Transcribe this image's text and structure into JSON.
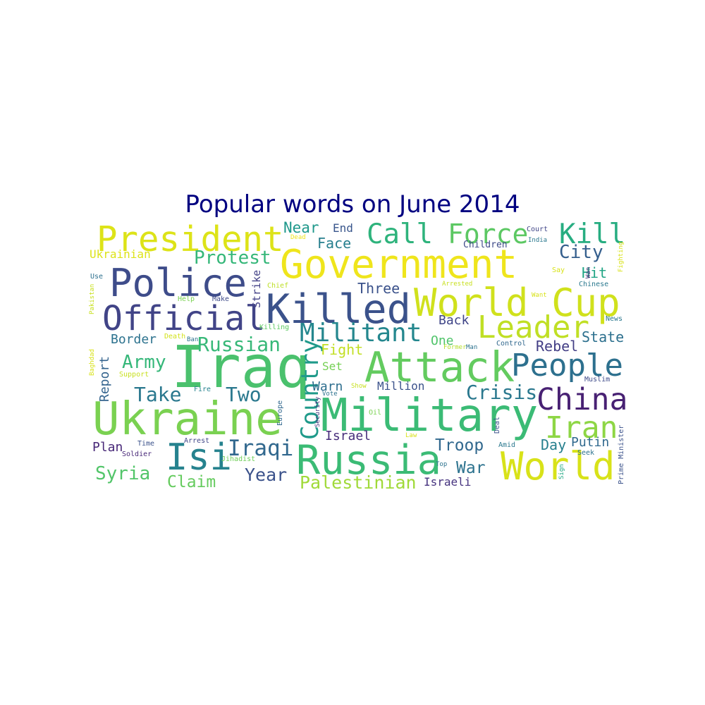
{
  "title": "Popular words on June 2014",
  "title_color": "#000080",
  "chart_data": {
    "type": "wordcloud",
    "title": "Popular words on June 2014",
    "words": [
      {
        "text": "Iraq",
        "size": 1.0,
        "color": "#4ac16d",
        "vertical": false
      },
      {
        "text": "Military",
        "size": 0.78,
        "color": "#3bbb75",
        "vertical": false
      },
      {
        "text": "Government",
        "size": 0.68,
        "color": "#efe51c",
        "vertical": false
      },
      {
        "text": "Ukraine",
        "size": 0.78,
        "color": "#7ad151",
        "vertical": false
      },
      {
        "text": "Attack",
        "size": 0.72,
        "color": "#63cb5f",
        "vertical": false
      },
      {
        "text": "Russia",
        "size": 0.7,
        "color": "#3bbb75",
        "vertical": false
      },
      {
        "text": "World",
        "size": 0.66,
        "color": "#d8e219",
        "vertical": false
      },
      {
        "text": "World Cup",
        "size": 0.66,
        "color": "#d0e11c",
        "vertical": false
      },
      {
        "text": "Killed",
        "size": 0.7,
        "color": "#3b528b",
        "vertical": false
      },
      {
        "text": "Police",
        "size": 0.66,
        "color": "#3e4c8a",
        "vertical": false
      },
      {
        "text": "President",
        "size": 0.6,
        "color": "#dde318",
        "vertical": false
      },
      {
        "text": "Isi",
        "size": 0.64,
        "color": "#26828e",
        "vertical": false
      },
      {
        "text": "Official",
        "size": 0.58,
        "color": "#414487",
        "vertical": false
      },
      {
        "text": "Leader",
        "size": 0.54,
        "color": "#c0df25",
        "vertical": false
      },
      {
        "text": "People",
        "size": 0.54,
        "color": "#2d708e",
        "vertical": false
      },
      {
        "text": "China",
        "size": 0.52,
        "color": "#482173",
        "vertical": false
      },
      {
        "text": "Iran",
        "size": 0.52,
        "color": "#8ed645",
        "vertical": false
      },
      {
        "text": "Call",
        "size": 0.48,
        "color": "#2eb37c",
        "vertical": false
      },
      {
        "text": "Force",
        "size": 0.46,
        "color": "#5cc863",
        "vertical": false
      },
      {
        "text": "Kill",
        "size": 0.48,
        "color": "#27ad81",
        "vertical": false
      },
      {
        "text": "Militant",
        "size": 0.44,
        "color": "#24878e",
        "vertical": false
      },
      {
        "text": "Country",
        "size": 0.42,
        "color": "#1f9a8a",
        "vertical": true
      },
      {
        "text": "Iraqi",
        "size": 0.38,
        "color": "#31688e",
        "vertical": false
      },
      {
        "text": "Russian",
        "size": 0.34,
        "color": "#37b878",
        "vertical": false
      },
      {
        "text": "Protest",
        "size": 0.32,
        "color": "#35b779",
        "vertical": false
      },
      {
        "text": "Take",
        "size": 0.34,
        "color": "#2a788e",
        "vertical": false
      },
      {
        "text": "Two",
        "size": 0.34,
        "color": "#2a788e",
        "vertical": false
      },
      {
        "text": "Crisis",
        "size": 0.34,
        "color": "#2a788e",
        "vertical": false
      },
      {
        "text": "City",
        "size": 0.32,
        "color": "#355f8d",
        "vertical": false
      },
      {
        "text": "Army",
        "size": 0.32,
        "color": "#35b779",
        "vertical": false
      },
      {
        "text": "Syria",
        "size": 0.32,
        "color": "#52c569",
        "vertical": false
      },
      {
        "text": "Claim",
        "size": 0.28,
        "color": "#65cb5e",
        "vertical": false
      },
      {
        "text": "Year",
        "size": 0.3,
        "color": "#3b528b",
        "vertical": false
      },
      {
        "text": "Palestinian",
        "size": 0.3,
        "color": "#a0da39",
        "vertical": false
      },
      {
        "text": "Troop",
        "size": 0.28,
        "color": "#31688e",
        "vertical": false
      },
      {
        "text": "War",
        "size": 0.28,
        "color": "#2c728e",
        "vertical": false
      },
      {
        "text": "Day",
        "size": 0.24,
        "color": "#27808e",
        "vertical": false
      },
      {
        "text": "Putin",
        "size": 0.22,
        "color": "#30698e",
        "vertical": false
      },
      {
        "text": "Near",
        "size": 0.26,
        "color": "#1f988b",
        "vertical": false
      },
      {
        "text": "Face",
        "size": 0.24,
        "color": "#277f8e",
        "vertical": false
      },
      {
        "text": "End",
        "size": 0.2,
        "color": "#39568c",
        "vertical": false
      },
      {
        "text": "Three",
        "size": 0.24,
        "color": "#3b528b",
        "vertical": false
      },
      {
        "text": "Back",
        "size": 0.22,
        "color": "#404688",
        "vertical": false
      },
      {
        "text": "State",
        "size": 0.24,
        "color": "#2d708e",
        "vertical": false
      },
      {
        "text": "Rebel",
        "size": 0.24,
        "color": "#433e85",
        "vertical": false
      },
      {
        "text": "Hit",
        "size": 0.24,
        "color": "#21a585",
        "vertical": false
      },
      {
        "text": "Border",
        "size": 0.22,
        "color": "#2c728e",
        "vertical": false
      },
      {
        "text": "Report",
        "size": 0.22,
        "color": "#33638d",
        "vertical": true
      },
      {
        "text": "Fight",
        "size": 0.24,
        "color": "#c2df23",
        "vertical": false
      },
      {
        "text": "One",
        "size": 0.22,
        "color": "#50c46a",
        "vertical": false
      },
      {
        "text": "Set",
        "size": 0.2,
        "color": "#75d054",
        "vertical": false
      },
      {
        "text": "Warn",
        "size": 0.22,
        "color": "#2e6e8e",
        "vertical": false
      },
      {
        "text": "Million",
        "size": 0.2,
        "color": "#3b528b",
        "vertical": false
      },
      {
        "text": "Israel",
        "size": 0.22,
        "color": "#472d7b",
        "vertical": false
      },
      {
        "text": "Israeli",
        "size": 0.2,
        "color": "#46337f",
        "vertical": false
      },
      {
        "text": "Plan",
        "size": 0.22,
        "color": "#482878",
        "vertical": false
      },
      {
        "text": "Ukrainian",
        "size": 0.2,
        "color": "#dde318",
        "vertical": false
      },
      {
        "text": "Strike",
        "size": 0.18,
        "color": "#424086",
        "vertical": true
      },
      {
        "text": "Children",
        "size": 0.16,
        "color": "#3e4a89",
        "vertical": false
      },
      {
        "text": "Court",
        "size": 0.12,
        "color": "#404688",
        "vertical": false
      },
      {
        "text": "India",
        "size": 0.1,
        "color": "#2a788e",
        "vertical": false
      },
      {
        "text": "Dead",
        "size": 0.1,
        "color": "#f1e51d",
        "vertical": false
      },
      {
        "text": "Use",
        "size": 0.12,
        "color": "#2d708e",
        "vertical": false
      },
      {
        "text": "Chief",
        "size": 0.12,
        "color": "#bddf26",
        "vertical": false
      },
      {
        "text": "Help",
        "size": 0.12,
        "color": "#7ad151",
        "vertical": false
      },
      {
        "text": "Make",
        "size": 0.12,
        "color": "#3e4a89",
        "vertical": false
      },
      {
        "text": "Killing",
        "size": 0.12,
        "color": "#5ec962",
        "vertical": false
      },
      {
        "text": "Ban",
        "size": 0.1,
        "color": "#2c728e",
        "vertical": false
      },
      {
        "text": "Death",
        "size": 0.12,
        "color": "#d2e21b",
        "vertical": false
      },
      {
        "text": "Support",
        "size": 0.12,
        "color": "#c8e020",
        "vertical": false
      },
      {
        "text": "Fire",
        "size": 0.12,
        "color": "#26828e",
        "vertical": false
      },
      {
        "text": "Show",
        "size": 0.1,
        "color": "#c8e020",
        "vertical": false
      },
      {
        "text": "Vote",
        "size": 0.1,
        "color": "#2c728e",
        "vertical": false
      },
      {
        "text": "Oil",
        "size": 0.12,
        "color": "#7ad151",
        "vertical": false
      },
      {
        "text": "Security",
        "size": 0.1,
        "color": "#46337f",
        "vertical": true
      },
      {
        "text": "Europe",
        "size": 0.12,
        "color": "#31688e",
        "vertical": true
      },
      {
        "text": "Deal",
        "size": 0.12,
        "color": "#3b528b",
        "vertical": true
      },
      {
        "text": "Time",
        "size": 0.12,
        "color": "#3b528b",
        "vertical": false
      },
      {
        "text": "Arrest",
        "size": 0.12,
        "color": "#404688",
        "vertical": false
      },
      {
        "text": "Soldier",
        "size": 0.12,
        "color": "#482878",
        "vertical": false
      },
      {
        "text": "Jihadist",
        "size": 0.12,
        "color": "#6ece58",
        "vertical": false
      },
      {
        "text": "Law",
        "size": 0.1,
        "color": "#d8e219",
        "vertical": false
      },
      {
        "text": "Top",
        "size": 0.1,
        "color": "#2c728e",
        "vertical": false
      },
      {
        "text": "Amid",
        "size": 0.12,
        "color": "#2a788e",
        "vertical": false
      },
      {
        "text": "Seek",
        "size": 0.12,
        "color": "#2c728e",
        "vertical": false
      },
      {
        "text": "Sign",
        "size": 0.1,
        "color": "#22a884",
        "vertical": true
      },
      {
        "text": "Prime Minister",
        "size": 0.12,
        "color": "#3b528b",
        "vertical": true
      },
      {
        "text": "Muslim",
        "size": 0.12,
        "color": "#3e4a89",
        "vertical": false
      },
      {
        "text": "Control",
        "size": 0.12,
        "color": "#31688e",
        "vertical": false
      },
      {
        "text": "Former",
        "size": 0.1,
        "color": "#b5de2b",
        "vertical": false
      },
      {
        "text": "Man",
        "size": 0.1,
        "color": "#2c728e",
        "vertical": false
      },
      {
        "text": "Arrested",
        "size": 0.1,
        "color": "#c8e020",
        "vertical": false
      },
      {
        "text": "Say",
        "size": 0.12,
        "color": "#d8e219",
        "vertical": false
      },
      {
        "text": "Want",
        "size": 0.1,
        "color": "#d8e219",
        "vertical": false
      },
      {
        "text": "Wan",
        "size": 0.1,
        "color": "#482878",
        "vertical": true
      },
      {
        "text": "Fighting",
        "size": 0.1,
        "color": "#d8e219",
        "vertical": true
      },
      {
        "text": "Chinese",
        "size": 0.12,
        "color": "#2a788e",
        "vertical": false
      },
      {
        "text": "News",
        "size": 0.12,
        "color": "#2a788e",
        "vertical": false
      },
      {
        "text": "Pakistan",
        "size": 0.1,
        "color": "#c8e020",
        "vertical": true
      },
      {
        "text": "Baghdad",
        "size": 0.1,
        "color": "#d8e219",
        "vertical": true
      }
    ]
  }
}
